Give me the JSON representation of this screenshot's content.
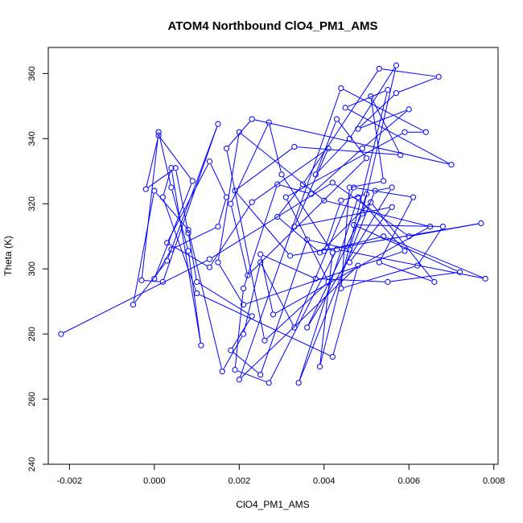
{
  "chart_data": {
    "type": "line",
    "title": "ATOM4 Northbound ClO4_PM1_AMS",
    "xlabel": "ClO4_PM1_AMS",
    "ylabel": "Theta (K)",
    "xlim": [
      -0.0025,
      0.0081
    ],
    "ylim": [
      240,
      368
    ],
    "x_ticks": [
      -0.002,
      0.0,
      0.002,
      0.004,
      0.006,
      0.008
    ],
    "x_tick_labels": [
      "-0.002",
      "0.000",
      "0.002",
      "0.004",
      "0.006",
      "0.008"
    ],
    "y_ticks": [
      240,
      260,
      280,
      300,
      320,
      340,
      360
    ],
    "y_tick_labels": [
      "240",
      "260",
      "280",
      "300",
      "320",
      "340",
      "360"
    ],
    "grid": false,
    "series": [
      {
        "color": "#0000ff",
        "marker": "open-circle",
        "points": [
          [
            -0.0022,
            280.0
          ],
          [
            0.0013,
            303.0
          ],
          [
            0.0042,
            326.5
          ],
          [
            0.006,
            310.0
          ],
          [
            0.0077,
            314.0
          ],
          [
            0.0032,
            304.0
          ],
          [
            0.0019,
            324.0
          ],
          [
            0.0033,
            337.5
          ],
          [
            0.0058,
            335.0
          ],
          [
            0.0051,
            353.0
          ],
          [
            0.0054,
            327.0
          ],
          [
            0.0046,
            325.0
          ],
          [
            0.0044,
            294.0
          ],
          [
            0.0062,
            301.0
          ],
          [
            0.0068,
            313.0
          ],
          [
            0.0047,
            313.5
          ],
          [
            0.0072,
            299.0
          ],
          [
            0.0055,
            296.0
          ],
          [
            0.0038,
            297.0
          ],
          [
            0.0025,
            304.5
          ],
          [
            0.0028,
            286.0
          ],
          [
            0.0065,
            313.0
          ],
          [
            0.004,
            321.0
          ],
          [
            0.002,
            342.0
          ],
          [
            0.0015,
            302.0
          ],
          [
            0.0021,
            289.0
          ],
          [
            0.0059,
            305.5
          ],
          [
            0.0048,
            322.0
          ],
          [
            0.0034,
            265.0
          ],
          [
            0.0052,
            324.0
          ],
          [
            0.0056,
            325.0
          ],
          [
            0.0036,
            282.0
          ],
          [
            0.0049,
            317.0
          ],
          [
            0.0057,
            362.5
          ],
          [
            0.0046,
            340.0
          ],
          [
            0.0038,
            329.0
          ],
          [
            0.0043,
            346.0
          ],
          [
            0.005,
            334.0
          ],
          [
            0.0022,
            298.0
          ],
          [
            0.0018,
            320.0
          ],
          [
            0.0027,
            345.0
          ],
          [
            0.003,
            329.0
          ],
          [
            0.0042,
            305.0
          ],
          [
            0.0039,
            270.0
          ],
          [
            0.0055,
            355.0
          ],
          [
            0.0045,
            349.5
          ],
          [
            0.007,
            332.0
          ],
          [
            0.0023,
            346.0
          ],
          [
            0.0017,
            337.0
          ],
          [
            0.0026,
            278.0
          ],
          [
            0.0041,
            296.0
          ],
          [
            0.0031,
            322.0
          ],
          [
            0.0059,
            342.0
          ],
          [
            0.0064,
            342.0
          ],
          [
            0.0044,
            355.5
          ],
          [
            0.002,
            266.0
          ],
          [
            0.0048,
            301.0
          ],
          [
            0.0042,
            273.0
          ],
          [
            0.001,
            292.5
          ],
          [
            0.0002,
            322.0
          ],
          [
            0.0004,
            331.0
          ],
          [
            0.0011,
            276.5
          ],
          [
            0.0008,
            305.5
          ],
          [
            0.0004,
            325.0
          ],
          [
            0.0001,
            342.0
          ],
          [
            -0.0003,
            296.5
          ],
          [
            0.0002,
            296.0
          ],
          [
            0.0015,
            344.5
          ],
          [
            0.0003,
            302.5
          ],
          [
            -0.0005,
            289.0
          ],
          [
            0.0,
            324.0
          ],
          [
            0.0008,
            312.0
          ],
          [
            0.0016,
            268.5
          ],
          [
            0.0021,
            280.0
          ],
          [
            0.0025,
            302.0
          ],
          [
            0.0033,
            282.0
          ],
          [
            0.0047,
            325.0
          ],
          [
            0.0061,
            322.0
          ],
          [
            0.0053,
            302.0
          ],
          [
            0.0066,
            296.0
          ],
          [
            0.0051,
            320.5
          ],
          [
            0.0039,
            305.0
          ],
          [
            0.0029,
            316.0
          ],
          [
            0.0035,
            326.0
          ],
          [
            0.0053,
            361.5
          ],
          [
            0.0067,
            359.0
          ],
          [
            0.0057,
            354.0
          ],
          [
            0.0048,
            343.0
          ],
          [
            0.006,
            349.0
          ],
          [
            0.0049,
            337.0
          ],
          [
            0.0037,
            323.0
          ],
          [
            0.0029,
            326.0
          ],
          [
            0.0021,
            294.0
          ],
          [
            0.0019,
            269.0
          ],
          [
            0.0027,
            265.0
          ],
          [
            0.0043,
            306.0
          ],
          [
            0.0078,
            297.0
          ],
          [
            0.0054,
            310.0
          ],
          [
            0.004,
            305.5
          ],
          [
            0.0044,
            321.0
          ],
          [
            0.005,
            323.0
          ],
          [
            0.0046,
            306.0
          ],
          [
            0.0036,
            309.0
          ],
          [
            0.0025,
            267.5
          ],
          [
            0.0018,
            275.0
          ],
          [
            0.0023,
            285.5
          ],
          [
            0.001,
            296.0
          ],
          [
            0.0008,
            311.0
          ],
          [
            0.0005,
            331.0
          ],
          [
            -0.0002,
            324.5
          ],
          [
            0.0001,
            341.0
          ],
          [
            0.0009,
            327.0
          ],
          [
            0.0,
            297.0
          ],
          [
            0.0004,
            306.0
          ],
          [
            0.0015,
            313.0
          ],
          [
            0.0017,
            322.0
          ],
          [
            0.0013,
            333.0
          ],
          [
            0.0003,
            308.0
          ],
          [
            0.0013,
            300.5
          ],
          [
            0.0023,
            320.5
          ],
          [
            0.0041,
            337.0
          ],
          [
            0.0033,
            313.0
          ],
          [
            0.0056,
            319.0
          ],
          [
            0.0046,
            302.0
          ]
        ]
      }
    ]
  }
}
